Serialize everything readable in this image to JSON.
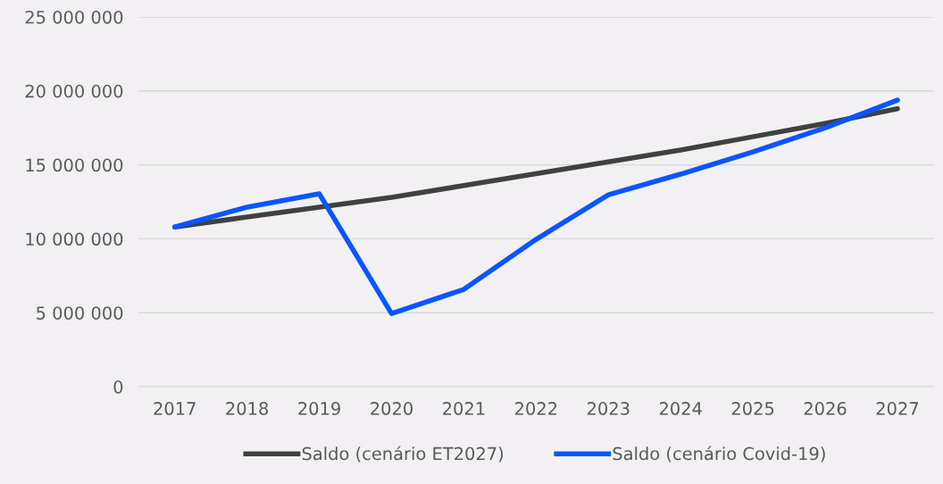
{
  "chart_data": {
    "type": "line",
    "categories": [
      "2017",
      "2018",
      "2019",
      "2020",
      "2021",
      "2022",
      "2023",
      "2024",
      "2025",
      "2026",
      "2027"
    ],
    "series": [
      {
        "name": "Saldo (cenário ET2027)",
        "color": "#404040",
        "values": [
          10800000,
          11470000,
          12140000,
          12800000,
          13600000,
          14400000,
          15200000,
          16000000,
          16900000,
          17800000,
          18800000
        ]
      },
      {
        "name": "Saldo (cenário Covid-19)",
        "color": "#0a55ff",
        "values": [
          10800000,
          12140000,
          13040000,
          4950000,
          6580000,
          9960000,
          12980000,
          14370000,
          15880000,
          17500000,
          19380000
        ]
      }
    ],
    "ylim": [
      0,
      25000000
    ],
    "yticks": [
      {
        "value": 0,
        "label": "0"
      },
      {
        "value": 5000000,
        "label": "5 000 000"
      },
      {
        "value": 10000000,
        "label": "10 000 000"
      },
      {
        "value": 15000000,
        "label": "15 000 000"
      },
      {
        "value": 20000000,
        "label": "20 000 000"
      },
      {
        "value": 25000000,
        "label": "25 000 000"
      }
    ],
    "grid": "y",
    "legend": "bottom",
    "marker": "none",
    "line_style": "solid"
  }
}
